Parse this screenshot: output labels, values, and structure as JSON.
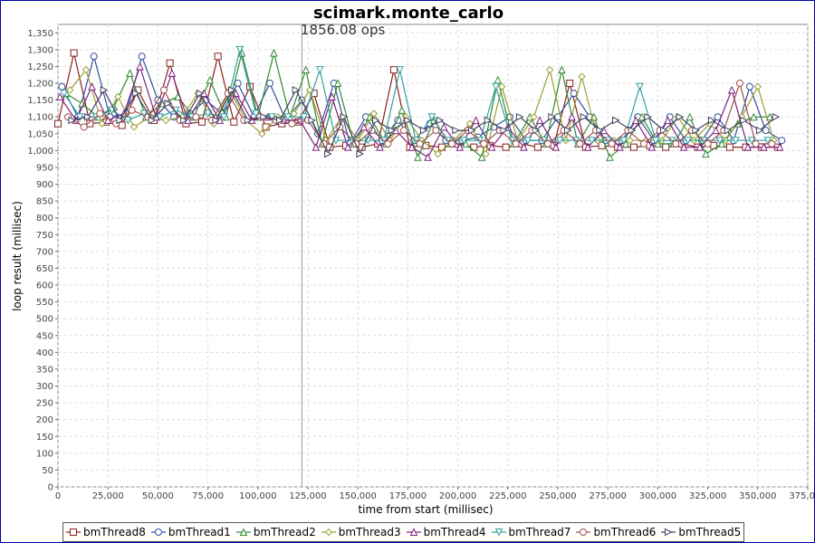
{
  "chart_data": {
    "type": "line",
    "title": "scimark.monte_carlo",
    "annotation": "1856.08 ops",
    "xlabel": "time from start (millisec)",
    "ylabel": "loop result (millisec)",
    "xlim": [
      0,
      375000
    ],
    "ylim": [
      0,
      1375
    ],
    "xticks": [
      0,
      25000,
      50000,
      75000,
      100000,
      125000,
      150000,
      175000,
      200000,
      225000,
      250000,
      275000,
      300000,
      325000,
      350000,
      375000
    ],
    "yticks": [
      0,
      50,
      100,
      150,
      200,
      250,
      300,
      350,
      400,
      450,
      500,
      550,
      600,
      650,
      700,
      750,
      800,
      850,
      900,
      950,
      1000,
      1050,
      1100,
      1150,
      1200,
      1250,
      1300,
      1350
    ],
    "marker_x": 122000,
    "grid": true,
    "legend_position": "bottom",
    "colors": {
      "bmThread8": "#8b2020",
      "bmThread1": "#3050a0",
      "bmThread2": "#2f8a2f",
      "bmThread3": "#9aa030",
      "bmThread4": "#802080",
      "bmThread7": "#30a0a0",
      "bmThread6": "#a05050",
      "bmThread5": "#404060"
    },
    "series": [
      {
        "name": "bmThread8",
        "marker": "square",
        "x": [
          0,
          8000,
          16000,
          24000,
          32000,
          40000,
          48000,
          56000,
          64000,
          72000,
          80000,
          88000,
          96000,
          104000,
          112000,
          120000,
          128000,
          136000,
          144000,
          152000,
          160000,
          168000,
          176000,
          184000,
          192000,
          200000,
          208000,
          216000,
          224000,
          232000,
          240000,
          248000,
          256000,
          264000,
          272000,
          280000,
          288000,
          296000,
          304000,
          312000,
          320000,
          328000,
          336000,
          344000,
          352000,
          360000
        ],
        "y": [
          1080,
          1290,
          1080,
          1085,
          1075,
          1180,
          1090,
          1260,
          1080,
          1085,
          1280,
          1085,
          1190,
          1070,
          1080,
          1085,
          1170,
          1010,
          1015,
          1010,
          1020,
          1240,
          1010,
          1015,
          1010,
          1020,
          1010,
          1015,
          1010,
          1020,
          1010,
          1015,
          1200,
          1010,
          1015,
          1010,
          1010,
          1015,
          1010,
          1020,
          1010,
          1015,
          1010,
          1010,
          1010,
          1010
        ]
      },
      {
        "name": "bmThread1",
        "marker": "circle",
        "x": [
          2000,
          10000,
          18000,
          26000,
          34000,
          42000,
          50000,
          58000,
          66000,
          74000,
          82000,
          90000,
          98000,
          106000,
          114000,
          122000,
          130000,
          138000,
          146000,
          154000,
          162000,
          170000,
          178000,
          186000,
          194000,
          202000,
          210000,
          218000,
          226000,
          234000,
          242000,
          250000,
          258000,
          266000,
          274000,
          282000,
          290000,
          298000,
          306000,
          314000,
          322000,
          330000,
          338000,
          346000,
          354000,
          362000
        ],
        "y": [
          1190,
          1100,
          1280,
          1100,
          1110,
          1280,
          1150,
          1100,
          1110,
          1150,
          1110,
          1200,
          1100,
          1200,
          1090,
          1150,
          1050,
          1200,
          1020,
          1100,
          1030,
          1090,
          1030,
          1080,
          1030,
          1030,
          1040,
          1070,
          1100,
          1030,
          1030,
          1100,
          1170,
          1100,
          1030,
          1030,
          1100,
          1030,
          1100,
          1030,
          1030,
          1100,
          1030,
          1190,
          1060,
          1030
        ]
      },
      {
        "name": "bmThread2",
        "marker": "triangle-up",
        "x": [
          4000,
          12000,
          20000,
          28000,
          36000,
          44000,
          52000,
          60000,
          68000,
          76000,
          84000,
          92000,
          100000,
          108000,
          116000,
          124000,
          132000,
          140000,
          148000,
          156000,
          164000,
          172000,
          180000,
          188000,
          196000,
          204000,
          212000,
          220000,
          228000,
          236000,
          244000,
          252000,
          260000,
          268000,
          276000,
          284000,
          292000,
          300000,
          308000,
          316000,
          324000,
          332000,
          340000,
          348000,
          356000
        ],
        "y": [
          1170,
          1140,
          1100,
          1130,
          1230,
          1100,
          1140,
          1160,
          1100,
          1210,
          1100,
          1290,
          1100,
          1290,
          1100,
          1240,
          1020,
          1200,
          1020,
          1100,
          1020,
          1120,
          980,
          1090,
          1020,
          1020,
          980,
          1210,
          1020,
          1100,
          1020,
          1240,
          1020,
          1100,
          980,
          1020,
          1100,
          1020,
          1020,
          1100,
          990,
          1020,
          1080,
          1100,
          1100
        ]
      },
      {
        "name": "bmThread3",
        "marker": "diamond",
        "x": [
          6000,
          14000,
          22000,
          30000,
          38000,
          46000,
          54000,
          62000,
          70000,
          78000,
          86000,
          94000,
          102000,
          110000,
          118000,
          126000,
          134000,
          142000,
          150000,
          158000,
          166000,
          174000,
          182000,
          190000,
          198000,
          206000,
          214000,
          222000,
          230000,
          238000,
          246000,
          254000,
          262000,
          270000,
          278000,
          286000,
          294000,
          302000,
          310000,
          318000,
          326000,
          334000,
          342000,
          350000,
          358000
        ],
        "y": [
          1180,
          1240,
          1080,
          1160,
          1070,
          1100,
          1090,
          1100,
          1170,
          1080,
          1180,
          1090,
          1050,
          1100,
          1110,
          1180,
          1030,
          1100,
          1030,
          1110,
          1030,
          1100,
          1030,
          990,
          1030,
          1080,
          990,
          1190,
          1030,
          1100,
          1240,
          1030,
          1220,
          1030,
          1030,
          1030,
          1030,
          1030,
          1100,
          1030,
          1080,
          1030,
          1100,
          1190,
          1030
        ]
      },
      {
        "name": "bmThread4",
        "marker": "triangle-up",
        "x": [
          1000,
          9000,
          17000,
          25000,
          33000,
          41000,
          49000,
          57000,
          65000,
          73000,
          81000,
          89000,
          97000,
          105000,
          113000,
          121000,
          129000,
          137000,
          145000,
          153000,
          161000,
          169000,
          177000,
          185000,
          193000,
          201000,
          209000,
          217000,
          225000,
          233000,
          241000,
          249000,
          257000,
          265000,
          273000,
          281000,
          289000,
          297000,
          305000,
          313000,
          321000,
          329000,
          337000,
          345000,
          353000,
          361000
        ],
        "y": [
          1160,
          1090,
          1190,
          1090,
          1110,
          1250,
          1100,
          1230,
          1090,
          1170,
          1090,
          1170,
          1090,
          1100,
          1090,
          1090,
          1010,
          1160,
          1010,
          1070,
          1010,
          1060,
          1010,
          980,
          1070,
          1010,
          1090,
          1010,
          1070,
          1010,
          1090,
          1010,
          1100,
          1010,
          1060,
          1010,
          1090,
          1010,
          1090,
          1010,
          1010,
          1060,
          1180,
          1010,
          1010,
          1010
        ]
      },
      {
        "name": "bmThread7",
        "marker": "triangle-down",
        "x": [
          3000,
          11000,
          19000,
          27000,
          35000,
          43000,
          51000,
          59000,
          67000,
          75000,
          83000,
          91000,
          99000,
          107000,
          115000,
          123000,
          131000,
          139000,
          147000,
          155000,
          163000,
          171000,
          179000,
          187000,
          195000,
          203000,
          211000,
          219000,
          227000,
          235000,
          243000,
          251000,
          259000,
          267000,
          275000,
          283000,
          291000,
          299000,
          307000,
          315000,
          323000,
          331000,
          339000,
          347000,
          355000
        ],
        "y": [
          1170,
          1100,
          1100,
          1120,
          1090,
          1110,
          1100,
          1120,
          1100,
          1110,
          1100,
          1300,
          1110,
          1100,
          1100,
          1100,
          1240,
          1030,
          1030,
          1030,
          1030,
          1240,
          1030,
          1100,
          1030,
          1030,
          1030,
          1190,
          1030,
          1030,
          1030,
          1030,
          1030,
          1030,
          1030,
          1030,
          1190,
          1030,
          1030,
          1030,
          1030,
          1030,
          1030,
          1030,
          1030
        ]
      },
      {
        "name": "bmThread6",
        "marker": "circle",
        "x": [
          5000,
          13000,
          21000,
          29000,
          37000,
          45000,
          53000,
          61000,
          69000,
          77000,
          85000,
          93000,
          101000,
          109000,
          117000,
          125000,
          133000,
          141000,
          149000,
          157000,
          165000,
          173000,
          181000,
          189000,
          197000,
          205000,
          213000,
          221000,
          229000,
          237000,
          245000,
          253000,
          261000,
          269000,
          277000,
          285000,
          293000,
          301000,
          309000,
          317000,
          325000,
          333000,
          341000,
          349000,
          357000
        ],
        "y": [
          1100,
          1070,
          1110,
          1080,
          1120,
          1100,
          1180,
          1090,
          1100,
          1090,
          1170,
          1090,
          1100,
          1090,
          1080,
          1090,
          1020,
          1070,
          1020,
          1060,
          1020,
          1060,
          1020,
          1060,
          1020,
          1060,
          1020,
          1060,
          1020,
          1060,
          1020,
          1060,
          1020,
          1060,
          1020,
          1060,
          1020,
          1060,
          1020,
          1060,
          1020,
          1060,
          1200,
          1020,
          1020
        ]
      },
      {
        "name": "bmThread5",
        "marker": "triangle-right",
        "x": [
          7000,
          15000,
          23000,
          31000,
          39000,
          47000,
          55000,
          63000,
          71000,
          79000,
          87000,
          95000,
          103000,
          111000,
          119000,
          127000,
          135000,
          143000,
          151000,
          159000,
          167000,
          175000,
          183000,
          191000,
          199000,
          207000,
          215000,
          223000,
          231000,
          239000,
          247000,
          255000,
          263000,
          271000,
          279000,
          287000,
          295000,
          303000,
          311000,
          319000,
          327000,
          335000,
          343000,
          351000,
          359000
        ],
        "y": [
          1090,
          1100,
          1180,
          1090,
          1170,
          1090,
          1140,
          1090,
          1170,
          1090,
          1180,
          1090,
          1100,
          1090,
          1180,
          1090,
          990,
          1100,
          990,
          1090,
          1060,
          1090,
          1060,
          1090,
          1060,
          1060,
          1090,
          1060,
          1100,
          1060,
          1100,
          1060,
          1100,
          1060,
          1090,
          1060,
          1100,
          1060,
          1100,
          1060,
          1090,
          1060,
          1090,
          1060,
          1100
        ]
      }
    ]
  }
}
